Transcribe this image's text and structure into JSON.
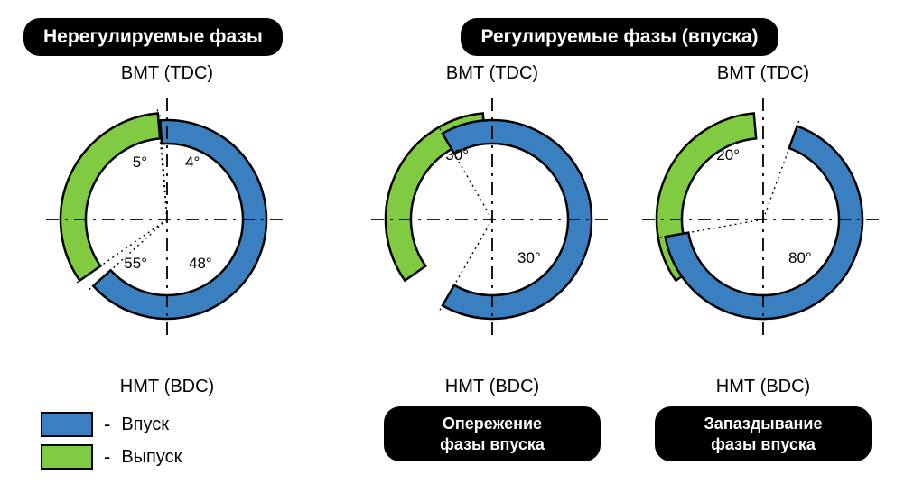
{
  "colors": {
    "intake": "#3a80c0",
    "exhaust": "#80cb42",
    "stroke": "#000000",
    "bg": "#ffffff"
  },
  "labels": {
    "tdc": "ВМТ (TDC)",
    "bdc": "НМТ (BDC)"
  },
  "left": {
    "title": "Нерегулируемые фазы",
    "diagram": {
      "exhaust_open_before_bdc_deg": 55,
      "exhaust_close_after_tdc_deg": 5,
      "intake_open_before_tdc_deg": 4,
      "intake_close_after_bdc_deg": 48,
      "exhaust_label_top": "5°",
      "intake_label_top": "4°",
      "exhaust_label_bottom": "55°",
      "intake_label_bottom": "48°"
    }
  },
  "right": {
    "title": "Регулируемые фазы (впуска)",
    "diagrams": [
      {
        "subtitle_line1": "Опережение",
        "subtitle_line2": "фазы впуска",
        "exhaust_open_before_bdc_deg": 55,
        "exhaust_close_after_tdc_deg": 5,
        "intake_open_before_tdc_deg": 30,
        "intake_close_after_bdc_deg": 30,
        "label_top": "30°",
        "label_bottom": "30°"
      },
      {
        "subtitle_line1": "Запаздывание",
        "subtitle_line2": "фазы впуска",
        "exhaust_open_before_bdc_deg": 55,
        "exhaust_close_after_tdc_deg": 5,
        "intake_open_before_tdc_deg": -20,
        "intake_close_after_bdc_deg": 80,
        "label_top": "20°",
        "label_bottom": "80°"
      }
    ]
  },
  "legend": {
    "intake": "Впуск",
    "exhaust": "Выпуск"
  },
  "geom": {
    "outer_radius": 112,
    "inner_radius": 92,
    "arc_width": 24,
    "stroke_width": 2.5,
    "angle_fontsize": 17
  }
}
